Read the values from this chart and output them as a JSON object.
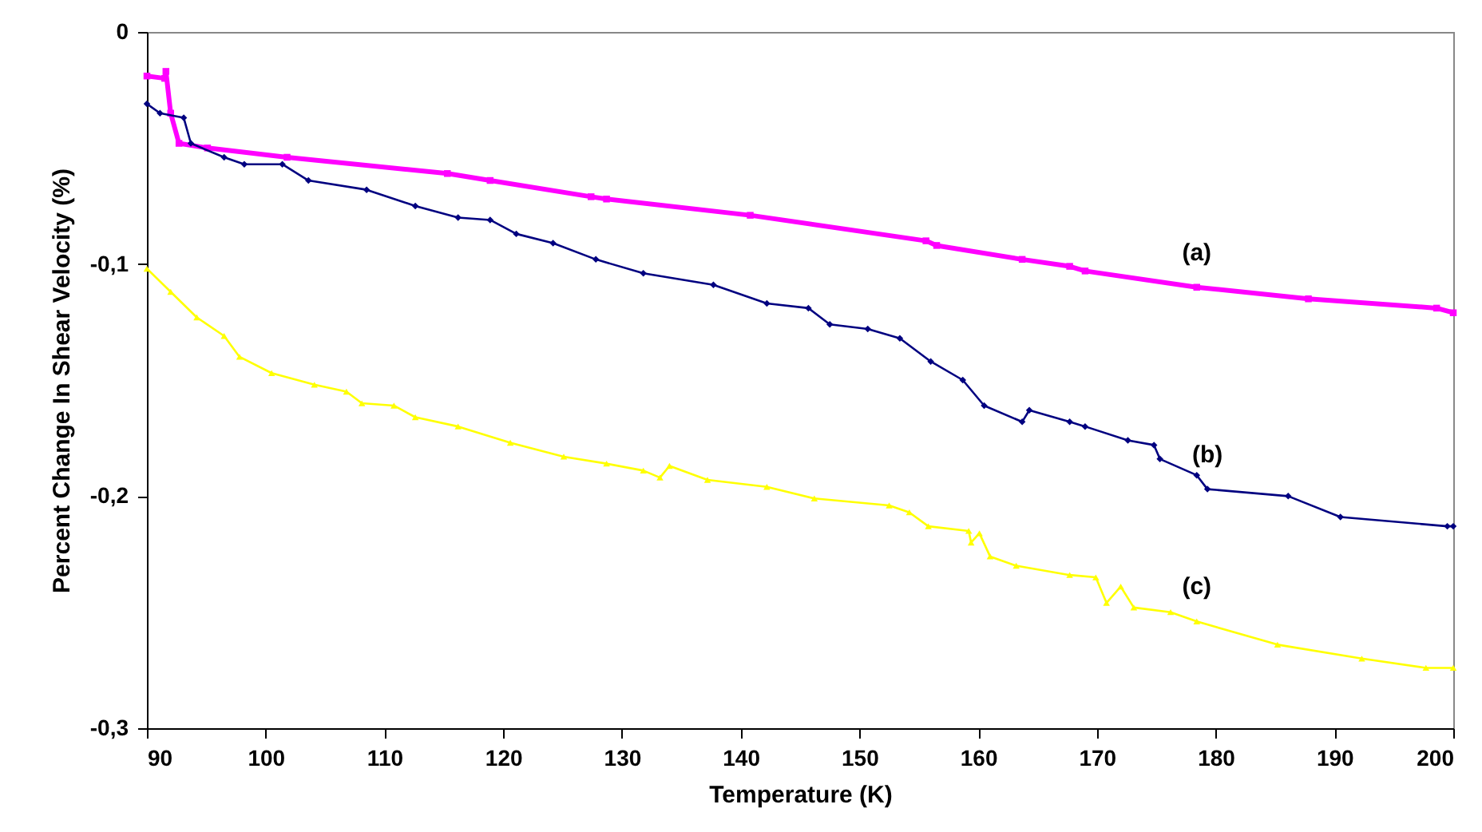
{
  "chart_data": {
    "type": "line",
    "xlabel": "Temperature (K)",
    "ylabel": "Percent Change In Shear Velocity (%)",
    "xlim": [
      90,
      200
    ],
    "xticks": [
      90,
      100,
      110,
      120,
      130,
      140,
      150,
      160,
      170,
      180,
      190,
      200
    ],
    "ylim": [
      -0.3,
      0
    ],
    "yticks": [
      {
        "value": -0.3,
        "label": "-0,3"
      },
      {
        "value": -0.2,
        "label": "-0,2"
      },
      {
        "value": -0.1,
        "label": "-0,1"
      },
      0
    ],
    "grid": false,
    "series": [
      {
        "name": "(a)",
        "color": "#ff00ff",
        "marker": "square",
        "x": [
          90,
          91.5,
          91.6,
          92.0,
          92.7,
          95.1,
          101.8,
          115.3,
          118.9,
          127.4,
          128.7,
          140.8,
          155.6,
          156.5,
          163.7,
          167.7,
          169,
          178.4,
          187.8,
          198.6,
          200
        ],
        "values": [
          -0.019,
          -0.02,
          -0.017,
          -0.035,
          -0.048,
          -0.05,
          -0.054,
          -0.061,
          -0.064,
          -0.071,
          -0.072,
          -0.079,
          -0.09,
          -0.092,
          -0.098,
          -0.101,
          -0.103,
          -0.11,
          -0.115,
          -0.119,
          -0.121
        ]
      },
      {
        "name": "(b)",
        "color": "#000080",
        "marker": "diamond",
        "x": [
          90,
          91.1,
          93.1,
          93.7,
          96.5,
          98.2,
          101.4,
          103.6,
          108.5,
          112.6,
          116.2,
          118.9,
          121.1,
          124.2,
          127.8,
          131.8,
          137.7,
          142.2,
          145.7,
          147.5,
          150.7,
          153.4,
          156.0,
          158.7,
          160.5,
          163.7,
          164.3,
          167.7,
          169,
          172.6,
          174.8,
          175.3,
          178.4,
          179.3,
          186.1,
          190.5,
          199.5,
          200
        ],
        "values": [
          -0.031,
          -0.035,
          -0.037,
          -0.048,
          -0.054,
          -0.057,
          -0.057,
          -0.064,
          -0.068,
          -0.075,
          -0.08,
          -0.081,
          -0.087,
          -0.091,
          -0.098,
          -0.104,
          -0.109,
          -0.117,
          -0.119,
          -0.126,
          -0.128,
          -0.132,
          -0.142,
          -0.15,
          -0.161,
          -0.168,
          -0.163,
          -0.168,
          -0.17,
          -0.176,
          -0.178,
          -0.184,
          -0.191,
          -0.197,
          -0.2,
          -0.209,
          -0.213,
          -0.213
        ]
      },
      {
        "name": "(c)",
        "color": "#ffff00",
        "marker": "triangle",
        "x": [
          90,
          92,
          94.2,
          96.5,
          97.8,
          100.5,
          104.1,
          106.8,
          108.1,
          110.8,
          112.6,
          116.2,
          120.6,
          125.1,
          128.7,
          131.8,
          133.2,
          134.0,
          137.2,
          142.2,
          146.2,
          152.5,
          154.2,
          155.8,
          159.2,
          159.4,
          160.1,
          161,
          163.2,
          167.7,
          169.9,
          170.8,
          172,
          173.1,
          176.2,
          178.4,
          185.2,
          192.3,
          197.7,
          200
        ],
        "values": [
          -0.102,
          -0.112,
          -0.123,
          -0.131,
          -0.14,
          -0.147,
          -0.152,
          -0.155,
          -0.16,
          -0.161,
          -0.166,
          -0.17,
          -0.177,
          -0.183,
          -0.186,
          -0.189,
          -0.192,
          -0.187,
          -0.193,
          -0.196,
          -0.201,
          -0.204,
          -0.207,
          -0.213,
          -0.215,
          -0.22,
          -0.216,
          -0.226,
          -0.23,
          -0.234,
          -0.235,
          -0.246,
          -0.239,
          -0.248,
          -0.25,
          -0.254,
          -0.264,
          -0.27,
          -0.274,
          -0.274
        ]
      }
    ]
  }
}
